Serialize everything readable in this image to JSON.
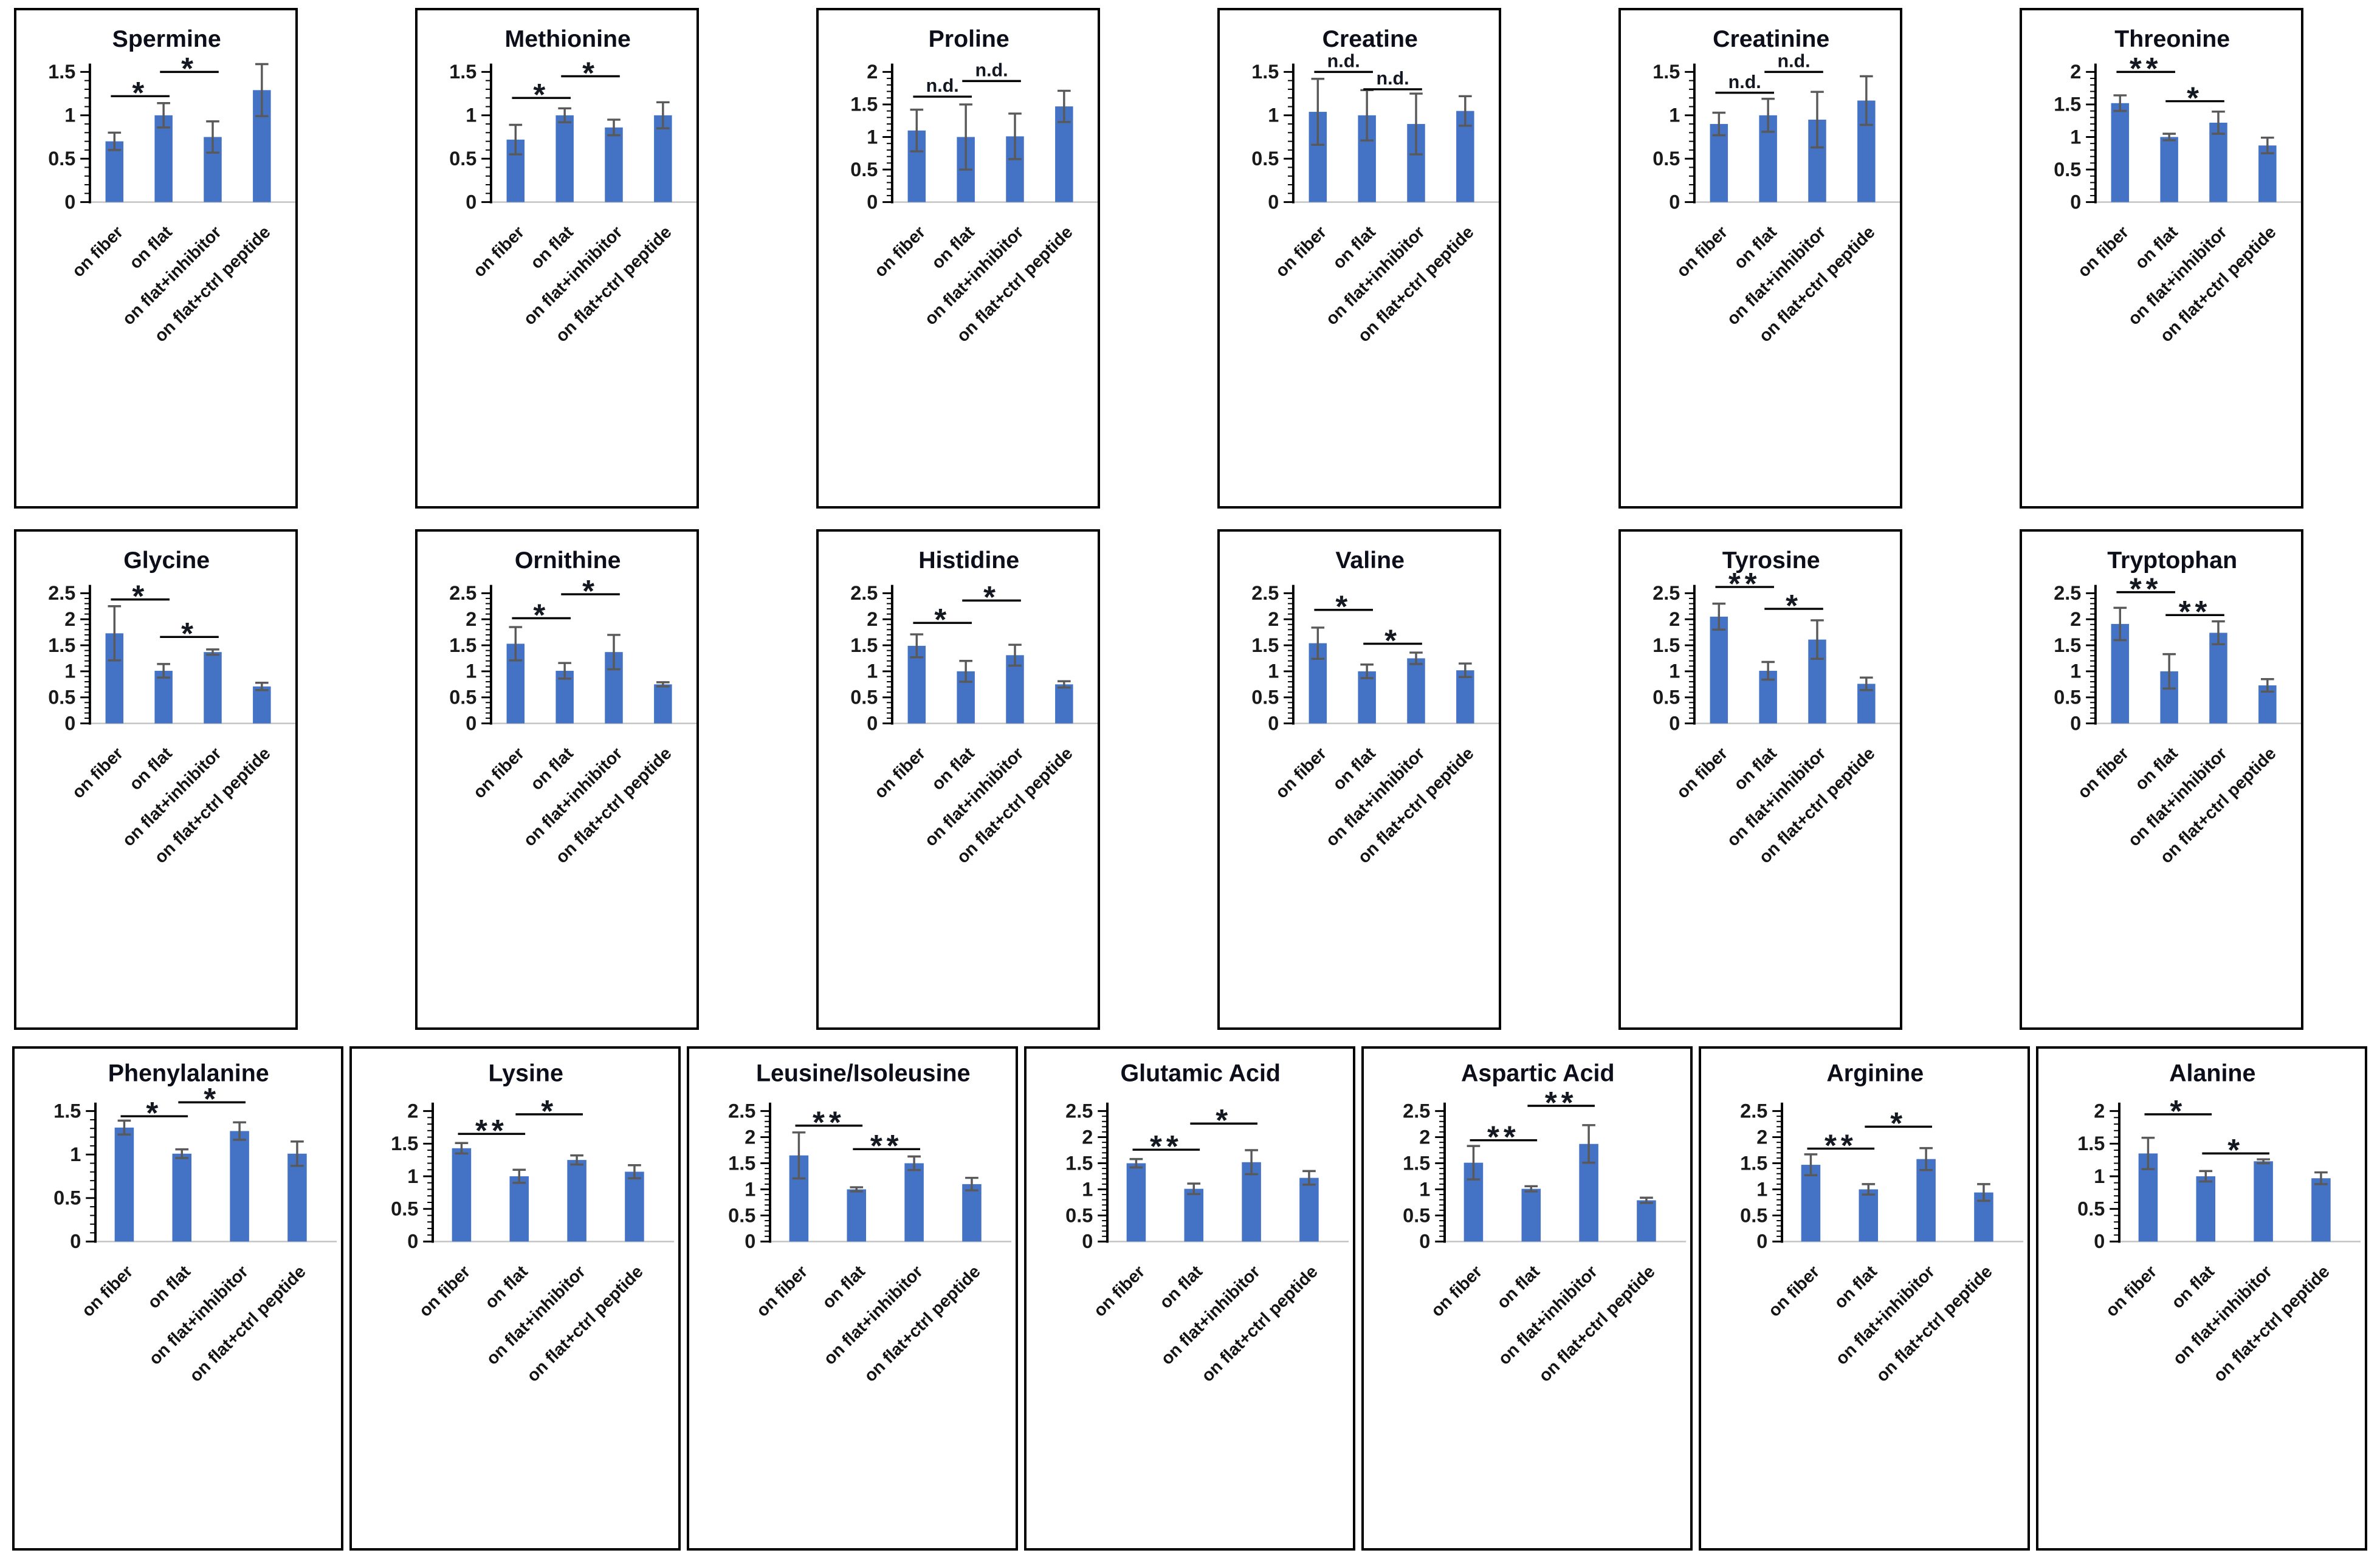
{
  "figure": {
    "bar_color": "#4472c4",
    "error_bar_color": "#595959",
    "axis_color": "#000000",
    "baseline_color": "#c4c4c4",
    "title_color": "#0c0f1a",
    "tick_label_color": "#1a1a1a",
    "category_label_color": "#141414",
    "significance_color": "#141821",
    "categories": [
      "on fiber",
      "on flat",
      "on flat+inhibitor",
      "on flat+ctrl peptide"
    ]
  },
  "chart_data": [
    {
      "type": "bar",
      "title": "Spermine",
      "row": 1,
      "categories": [
        "on fiber",
        "on flat",
        "on flat+inhibitor",
        "on flat+ctrl peptide"
      ],
      "values": [
        0.7,
        1.0,
        0.75,
        1.29
      ],
      "errors": [
        0.1,
        0.14,
        0.18,
        0.3
      ],
      "ylim": [
        0,
        1.5
      ],
      "ytick_step": 0.5,
      "xlabel": "",
      "ylabel": "",
      "grid": false,
      "legend": "none",
      "sig": [
        {
          "label": "*",
          "a": 0,
          "b": 1,
          "y": 1.22
        },
        {
          "label": "*",
          "a": 1,
          "b": 2,
          "y": 1.5
        }
      ]
    },
    {
      "type": "bar",
      "title": "Methionine",
      "row": 1,
      "categories": [
        "on fiber",
        "on flat",
        "on flat+inhibitor",
        "on flat+ctrl peptide"
      ],
      "values": [
        0.72,
        1.0,
        0.86,
        1.0
      ],
      "errors": [
        0.17,
        0.08,
        0.09,
        0.15
      ],
      "ylim": [
        0,
        1.5
      ],
      "ytick_step": 0.5,
      "xlabel": "",
      "ylabel": "",
      "grid": false,
      "legend": "none",
      "sig": [
        {
          "label": "*",
          "a": 0,
          "b": 1,
          "y": 1.2
        },
        {
          "label": "*",
          "a": 1,
          "b": 2,
          "y": 1.45
        }
      ]
    },
    {
      "type": "bar",
      "title": "Proline",
      "row": 1,
      "categories": [
        "on fiber",
        "on flat",
        "on flat+inhibitor",
        "on flat+ctrl peptide"
      ],
      "values": [
        1.1,
        1.0,
        1.01,
        1.47
      ],
      "errors": [
        0.32,
        0.5,
        0.35,
        0.24
      ],
      "ylim": [
        0,
        2
      ],
      "ytick_step": 0.5,
      "xlabel": "",
      "ylabel": "",
      "grid": false,
      "legend": "none",
      "sig": [
        {
          "label": "n.d.",
          "a": 0,
          "b": 1,
          "y": 1.62
        },
        {
          "label": "n.d.",
          "a": 1,
          "b": 2,
          "y": 1.86
        }
      ]
    },
    {
      "type": "bar",
      "title": "Creatine",
      "row": 1,
      "categories": [
        "on fiber",
        "on flat",
        "on flat+inhibitor",
        "on flat+ctrl peptide"
      ],
      "values": [
        1.04,
        1.0,
        0.9,
        1.05
      ],
      "errors": [
        0.38,
        0.29,
        0.35,
        0.17
      ],
      "ylim": [
        0,
        1.5
      ],
      "ytick_step": 0.5,
      "xlabel": "",
      "ylabel": "",
      "grid": false,
      "legend": "none",
      "sig": [
        {
          "label": "n.d.",
          "a": 0,
          "b": 1,
          "y": 1.5
        },
        {
          "label": "n.d.",
          "a": 1,
          "b": 2,
          "y": 1.3
        }
      ]
    },
    {
      "type": "bar",
      "title": "Creatinine",
      "row": 1,
      "categories": [
        "on fiber",
        "on flat",
        "on flat+inhibitor",
        "on flat+ctrl peptide"
      ],
      "values": [
        0.9,
        1.0,
        0.95,
        1.17
      ],
      "errors": [
        0.13,
        0.19,
        0.32,
        0.28
      ],
      "ylim": [
        0,
        1.5
      ],
      "ytick_step": 0.5,
      "xlabel": "",
      "ylabel": "",
      "grid": false,
      "legend": "none",
      "sig": [
        {
          "label": "n.d.",
          "a": 0,
          "b": 1,
          "y": 1.26
        },
        {
          "label": "n.d.",
          "a": 1,
          "b": 2,
          "y": 1.5
        }
      ]
    },
    {
      "type": "bar",
      "title": "Threonine",
      "row": 1,
      "categories": [
        "on fiber",
        "on flat",
        "on flat+inhibitor",
        "on flat+ctrl peptide"
      ],
      "values": [
        1.52,
        1.0,
        1.22,
        0.87
      ],
      "errors": [
        0.12,
        0.05,
        0.17,
        0.12
      ],
      "ylim": [
        0,
        2
      ],
      "ytick_step": 0.5,
      "xlabel": "",
      "ylabel": "",
      "grid": false,
      "legend": "none",
      "sig": [
        {
          "label": "**",
          "a": 0,
          "b": 1,
          "y": 2.0
        },
        {
          "label": "*",
          "a": 1,
          "b": 2,
          "y": 1.55
        }
      ]
    },
    {
      "type": "bar",
      "title": "Glycine",
      "row": 2,
      "categories": [
        "on fiber",
        "on flat",
        "on flat+inhibitor",
        "on flat+ctrl peptide"
      ],
      "values": [
        1.73,
        1.01,
        1.37,
        0.71
      ],
      "errors": [
        0.52,
        0.13,
        0.05,
        0.07
      ],
      "ylim": [
        0,
        2.5
      ],
      "ytick_step": 0.5,
      "xlabel": "",
      "ylabel": "",
      "grid": false,
      "legend": "none",
      "sig": [
        {
          "label": "*",
          "a": 0,
          "b": 1,
          "y": 2.38
        },
        {
          "label": "*",
          "a": 1,
          "b": 2,
          "y": 1.66
        }
      ]
    },
    {
      "type": "bar",
      "title": "Ornithine",
      "row": 2,
      "categories": [
        "on fiber",
        "on flat",
        "on flat+inhibitor",
        "on flat+ctrl peptide"
      ],
      "values": [
        1.53,
        1.01,
        1.37,
        0.75
      ],
      "errors": [
        0.32,
        0.15,
        0.33,
        0.04
      ],
      "ylim": [
        0,
        2.5
      ],
      "ytick_step": 0.5,
      "xlabel": "",
      "ylabel": "",
      "grid": false,
      "legend": "none",
      "sig": [
        {
          "label": "*",
          "a": 0,
          "b": 1,
          "y": 2.02
        },
        {
          "label": "*",
          "a": 1,
          "b": 2,
          "y": 2.48
        }
      ]
    },
    {
      "type": "bar",
      "title": "Histidine",
      "row": 2,
      "categories": [
        "on fiber",
        "on flat",
        "on flat+inhibitor",
        "on flat+ctrl peptide"
      ],
      "values": [
        1.49,
        1.0,
        1.31,
        0.75
      ],
      "errors": [
        0.22,
        0.2,
        0.2,
        0.06
      ],
      "ylim": [
        0,
        2.5
      ],
      "ytick_step": 0.5,
      "xlabel": "",
      "ylabel": "",
      "grid": false,
      "legend": "none",
      "sig": [
        {
          "label": "*",
          "a": 0,
          "b": 1,
          "y": 1.93
        },
        {
          "label": "*",
          "a": 1,
          "b": 2,
          "y": 2.36
        }
      ]
    },
    {
      "type": "bar",
      "title": "Valine",
      "row": 2,
      "categories": [
        "on fiber",
        "on flat",
        "on flat+inhibitor",
        "on flat+ctrl peptide"
      ],
      "values": [
        1.54,
        1.0,
        1.25,
        1.02
      ],
      "errors": [
        0.3,
        0.13,
        0.11,
        0.13
      ],
      "ylim": [
        0,
        2.5
      ],
      "ytick_step": 0.5,
      "xlabel": "",
      "ylabel": "",
      "grid": false,
      "legend": "none",
      "sig": [
        {
          "label": "*",
          "a": 0,
          "b": 1,
          "y": 2.18
        },
        {
          "label": "*",
          "a": 1,
          "b": 2,
          "y": 1.53
        }
      ]
    },
    {
      "type": "bar",
      "title": "Tyrosine",
      "row": 2,
      "categories": [
        "on fiber",
        "on flat",
        "on flat+inhibitor",
        "on flat+ctrl peptide"
      ],
      "values": [
        2.05,
        1.01,
        1.61,
        0.76
      ],
      "errors": [
        0.25,
        0.17,
        0.37,
        0.12
      ],
      "ylim": [
        0,
        2.5
      ],
      "ytick_step": 0.5,
      "xlabel": "",
      "ylabel": "",
      "grid": false,
      "legend": "none",
      "sig": [
        {
          "label": "**",
          "a": 0,
          "b": 1,
          "y": 2.62
        },
        {
          "label": "*",
          "a": 1,
          "b": 2,
          "y": 2.2
        }
      ]
    },
    {
      "type": "bar",
      "title": "Tryptophan",
      "row": 2,
      "categories": [
        "on fiber",
        "on flat",
        "on flat+inhibitor",
        "on flat+ctrl peptide"
      ],
      "values": [
        1.91,
        1.0,
        1.74,
        0.73
      ],
      "errors": [
        0.31,
        0.33,
        0.22,
        0.12
      ],
      "ylim": [
        0,
        2.5
      ],
      "ytick_step": 0.5,
      "xlabel": "",
      "ylabel": "",
      "grid": false,
      "legend": "none",
      "sig": [
        {
          "label": "**",
          "a": 0,
          "b": 1,
          "y": 2.52
        },
        {
          "label": "**",
          "a": 1,
          "b": 2,
          "y": 2.08
        }
      ]
    },
    {
      "type": "bar",
      "title": "Phenylalanine",
      "row": 3,
      "categories": [
        "on fiber",
        "on flat",
        "on flat+inhibitor",
        "on flat+ctrl peptide"
      ],
      "values": [
        1.31,
        1.01,
        1.27,
        1.01
      ],
      "errors": [
        0.08,
        0.05,
        0.1,
        0.14
      ],
      "ylim": [
        0,
        1.5
      ],
      "ytick_step": 0.5,
      "xlabel": "",
      "ylabel": "",
      "grid": false,
      "legend": "none",
      "sig": [
        {
          "label": "*",
          "a": 0,
          "b": 1,
          "y": 1.44
        },
        {
          "label": "*",
          "a": 1,
          "b": 2,
          "y": 1.6
        }
      ]
    },
    {
      "type": "bar",
      "title": "Lysine",
      "row": 3,
      "categories": [
        "on fiber",
        "on flat",
        "on flat+inhibitor",
        "on flat+ctrl peptide"
      ],
      "values": [
        1.43,
        1.0,
        1.25,
        1.07
      ],
      "errors": [
        0.08,
        0.1,
        0.07,
        0.1
      ],
      "ylim": [
        0,
        2
      ],
      "ytick_step": 0.5,
      "xlabel": "",
      "ylabel": "",
      "grid": false,
      "legend": "none",
      "sig": [
        {
          "label": "**",
          "a": 0,
          "b": 1,
          "y": 1.65
        },
        {
          "label": "*",
          "a": 1,
          "b": 2,
          "y": 1.95
        }
      ]
    },
    {
      "type": "bar",
      "title": "Leusine/Isoleusine",
      "row": 3,
      "categories": [
        "on fiber",
        "on flat",
        "on flat+inhibitor",
        "on flat+ctrl peptide"
      ],
      "values": [
        1.65,
        1.0,
        1.5,
        1.1
      ],
      "errors": [
        0.44,
        0.04,
        0.13,
        0.12
      ],
      "ylim": [
        0,
        2.5
      ],
      "ytick_step": 0.5,
      "xlabel": "",
      "ylabel": "",
      "grid": false,
      "legend": "none",
      "sig": [
        {
          "label": "**",
          "a": 0,
          "b": 1,
          "y": 2.22
        },
        {
          "label": "**",
          "a": 1,
          "b": 2,
          "y": 1.77
        }
      ]
    },
    {
      "type": "bar",
      "title": "Glutamic Acid",
      "row": 3,
      "categories": [
        "on fiber",
        "on flat",
        "on flat+inhibitor",
        "on flat+ctrl peptide"
      ],
      "values": [
        1.5,
        1.01,
        1.52,
        1.22
      ],
      "errors": [
        0.08,
        0.1,
        0.23,
        0.13
      ],
      "ylim": [
        0,
        2.5
      ],
      "ytick_step": 0.5,
      "xlabel": "",
      "ylabel": "",
      "grid": false,
      "legend": "none",
      "sig": [
        {
          "label": "**",
          "a": 0,
          "b": 1,
          "y": 1.76
        },
        {
          "label": "*",
          "a": 1,
          "b": 2,
          "y": 2.26
        }
      ]
    },
    {
      "type": "bar",
      "title": "Aspartic Acid",
      "row": 3,
      "categories": [
        "on fiber",
        "on flat",
        "on flat+inhibitor",
        "on flat+ctrl peptide"
      ],
      "values": [
        1.51,
        1.01,
        1.87,
        0.79
      ],
      "errors": [
        0.32,
        0.05,
        0.36,
        0.05
      ],
      "ylim": [
        0,
        2.5
      ],
      "ytick_step": 0.5,
      "xlabel": "",
      "ylabel": "",
      "grid": false,
      "legend": "none",
      "sig": [
        {
          "label": "**",
          "a": 0,
          "b": 1,
          "y": 1.94
        },
        {
          "label": "**",
          "a": 1,
          "b": 2,
          "y": 2.6
        }
      ]
    },
    {
      "type": "bar",
      "title": "Arginine",
      "row": 3,
      "categories": [
        "on fiber",
        "on flat",
        "on flat+inhibitor",
        "on flat+ctrl peptide"
      ],
      "values": [
        1.47,
        1.0,
        1.58,
        0.94
      ],
      "errors": [
        0.2,
        0.1,
        0.21,
        0.16
      ],
      "ylim": [
        0,
        2.5
      ],
      "ytick_step": 0.5,
      "xlabel": "",
      "ylabel": "",
      "grid": false,
      "legend": "none",
      "sig": [
        {
          "label": "**",
          "a": 0,
          "b": 1,
          "y": 1.78
        },
        {
          "label": "*",
          "a": 1,
          "b": 2,
          "y": 2.2
        }
      ]
    },
    {
      "type": "bar",
      "title": "Alanine",
      "row": 3,
      "categories": [
        "on fiber",
        "on flat",
        "on flat+inhibitor",
        "on flat+ctrl peptide"
      ],
      "values": [
        1.35,
        1.0,
        1.23,
        0.97
      ],
      "errors": [
        0.24,
        0.08,
        0.03,
        0.09
      ],
      "ylim": [
        0,
        2
      ],
      "ytick_step": 0.5,
      "xlabel": "",
      "ylabel": "",
      "grid": false,
      "legend": "none",
      "sig": [
        {
          "label": "*",
          "a": 0,
          "b": 1,
          "y": 1.95
        },
        {
          "label": "*",
          "a": 1,
          "b": 2,
          "y": 1.35
        }
      ]
    }
  ]
}
